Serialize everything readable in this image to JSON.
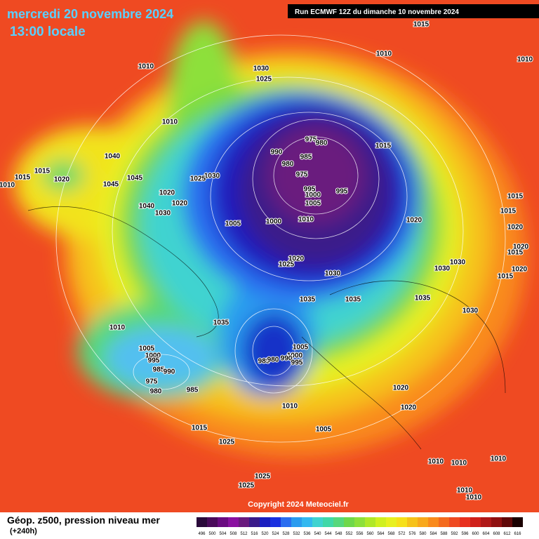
{
  "header": {
    "title": "mercredi 20 novembre 2024",
    "subtitle": "13:00 locale",
    "run": "Run ECMWF 12Z du dimanche 10 novembre 2024"
  },
  "map": {
    "isobar_labels": [
      "1015",
      "1010",
      "1010",
      "1030",
      "1025",
      "1010",
      "1010",
      "1015",
      "975",
      "980",
      "990",
      "985",
      "980",
      "975",
      "1040",
      "1015",
      "1020",
      "1015",
      "1010",
      "1045",
      "1045",
      "1030",
      "1025",
      "995",
      "995",
      "1000",
      "1005",
      "1020",
      "1020",
      "1040",
      "1030",
      "1005",
      "1000",
      "1010",
      "1020",
      "1015",
      "1015",
      "1020",
      "1020",
      "1015",
      "1020",
      "1025",
      "1030",
      "1030",
      "1030",
      "1020",
      "1015",
      "1035",
      "1035",
      "1035",
      "1030",
      "1035",
      "1010",
      "1005",
      "1000",
      "995",
      "985",
      "990",
      "975",
      "980",
      "985",
      "1005",
      "1000",
      "985",
      "980",
      "990",
      "995",
      "1020",
      "1020",
      "1010",
      "1005",
      "1015",
      "1025",
      "1010",
      "1010",
      "1010",
      "1025",
      "1025",
      "1010",
      "1010"
    ]
  },
  "footer": {
    "copyright": "Copyright 2024 Meteociel.fr",
    "caption": "Géop. z500, pression niveau mer",
    "lead": "(+240h)",
    "legend": [
      496,
      500,
      504,
      508,
      512,
      516,
      520,
      524,
      528,
      532,
      536,
      540,
      544,
      548,
      552,
      556,
      560,
      564,
      568,
      572,
      576,
      580,
      584,
      588,
      592,
      596,
      600,
      604,
      608,
      612,
      616
    ]
  }
}
